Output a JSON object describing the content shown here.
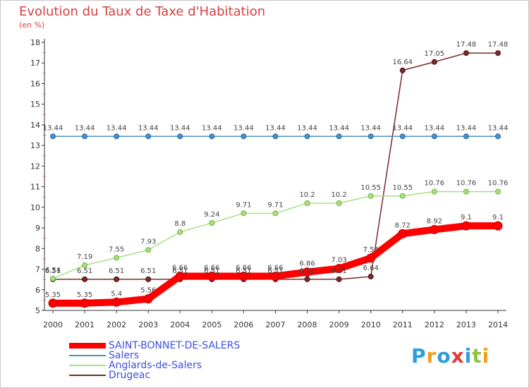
{
  "title": "Evolution du Taux de Taxe d'Habitation",
  "subtitle": "(en %)",
  "logo": {
    "letters": [
      {
        "char": "P",
        "color": "#2a9ee0"
      },
      {
        "char": "r",
        "color": "#f0a020"
      },
      {
        "char": "o",
        "color": "#2a9ee0"
      },
      {
        "char": "x",
        "color": "#e03c3c"
      },
      {
        "char": "i",
        "color": "#2a9ee0"
      },
      {
        "char": "t",
        "color": "#8cc63e"
      },
      {
        "char": "i",
        "color": "#f0a020"
      }
    ]
  },
  "chart_data": {
    "type": "line",
    "title": "Evolution du Taux de Taxe d'Habitation",
    "ylabel": "(en %)",
    "xlabel": "",
    "x": [
      2000,
      2001,
      2002,
      2003,
      2004,
      2005,
      2006,
      2007,
      2008,
      2009,
      2010,
      2011,
      2012,
      2013,
      2014
    ],
    "ylim": [
      5,
      18
    ],
    "yticks": [
      5,
      6,
      7,
      8,
      9,
      10,
      11,
      12,
      13,
      14,
      15,
      16,
      17,
      18
    ],
    "grid": false,
    "legend_position": "bottom-left",
    "series": [
      {
        "name": "SAINT-BONNET-DE-SALERS",
        "color": "#ff0000",
        "values": [
          5.35,
          5.35,
          5.4,
          5.56,
          6.66,
          6.66,
          6.66,
          6.66,
          6.86,
          7.03,
          7.54,
          8.72,
          8.92,
          9.1,
          9.1
        ],
        "labels": [
          "5.35",
          "5.35",
          "5.4",
          "5.56",
          "6.66",
          "6.66",
          "6.66",
          "6.66",
          "6.86",
          "7.03",
          "7.54",
          "8.72",
          "8.92",
          "9.1",
          "9.1"
        ]
      },
      {
        "name": "Salers",
        "color": "#4a90c8",
        "values": [
          13.44,
          13.44,
          13.44,
          13.44,
          13.44,
          13.44,
          13.44,
          13.44,
          13.44,
          13.44,
          13.44,
          13.44,
          13.44,
          13.44,
          13.44
        ],
        "labels": [
          "13.44",
          "13.44",
          "13.44",
          "13.44",
          "13.44",
          "13.44",
          "13.44",
          "13.44",
          "13.44",
          "13.44",
          "13.44",
          "13.44",
          "13.44",
          "13.44",
          "13.44"
        ]
      },
      {
        "name": "Anglards-de-Salers",
        "color": "#a8e080",
        "values": [
          6.54,
          7.19,
          7.55,
          7.93,
          8.8,
          9.24,
          9.71,
          9.71,
          10.2,
          10.2,
          10.55,
          10.55,
          10.76,
          10.76,
          10.76
        ],
        "labels": [
          "6.54",
          "7.19",
          "7.55",
          "7.93",
          "8.8",
          "9.24",
          "9.71",
          "9.71",
          "10.2",
          "10.2",
          "10.55",
          "10.55",
          "10.76",
          "10.76",
          "10.76"
        ]
      },
      {
        "name": "Drugeac",
        "color": "#7a2a2a",
        "values": [
          6.51,
          6.51,
          6.51,
          6.51,
          6.51,
          6.51,
          6.51,
          6.51,
          6.51,
          6.51,
          6.64,
          16.64,
          17.05,
          17.48,
          17.48
        ],
        "labels": [
          "6.51",
          "6.51",
          "6.51",
          "6.51",
          "6.51",
          "6.51",
          "6.51",
          "6.51",
          "6.51",
          "6.51",
          "6.64",
          "16.64",
          "17.05",
          "17.48",
          "17.48"
        ]
      }
    ]
  }
}
